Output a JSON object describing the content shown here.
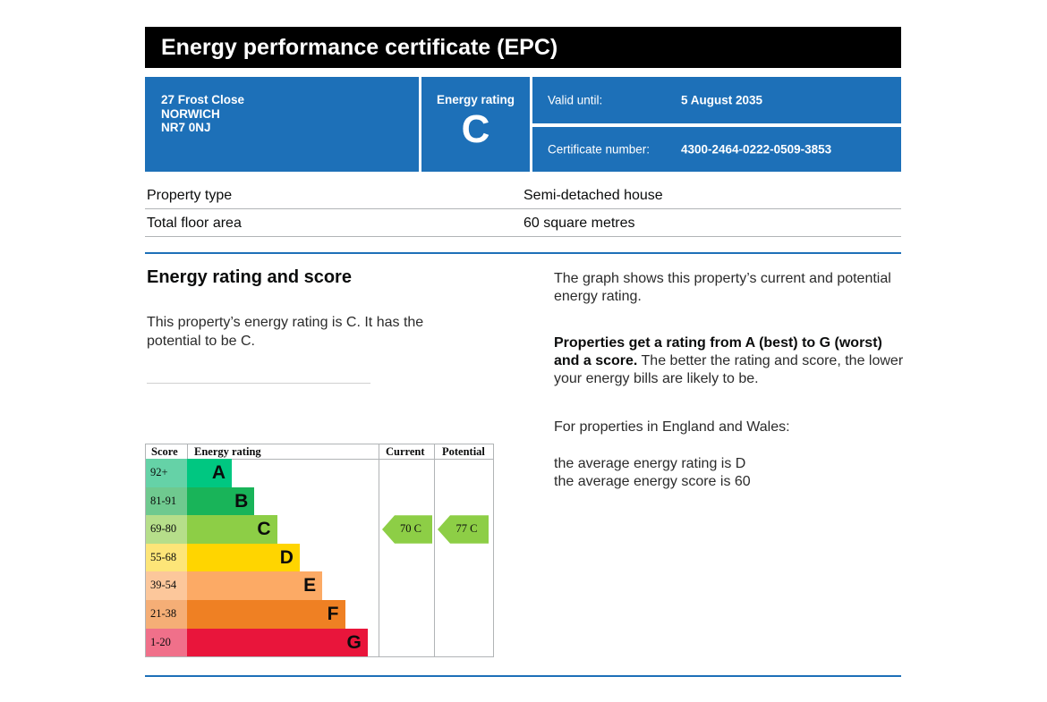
{
  "title": "Energy performance certificate (EPC)",
  "address": {
    "line1": "27 Frost Close",
    "line2": "NORWICH",
    "line3": "NR7 0NJ"
  },
  "energy_rating_box": {
    "label": "Energy rating",
    "value": "C"
  },
  "valid_until": {
    "label": "Valid until:",
    "value": "5 August 2035"
  },
  "certificate_number": {
    "label": "Certificate number:",
    "value": "4300-2464-0222-0509-3853"
  },
  "property": {
    "type_label": "Property type",
    "type_value": "Semi-detached house",
    "area_label": "Total floor area",
    "area_value": "60 square metres"
  },
  "section": {
    "heading": "Energy rating and score",
    "summary": "This property’s energy rating is C. It has the potential to be C."
  },
  "right": {
    "p1": "The graph shows this property’s current and potential energy rating.",
    "p2_bold": "Properties get a rating from A (best) to G (worst) and a score.",
    "p2_rest": " The better the rating and score, the lower your energy bills are likely to be.",
    "p3": "For properties in England and Wales:",
    "p4a": "the average energy rating is D",
    "p4b": "the average energy score is 60"
  },
  "graph": {
    "header_score": "Score",
    "header_rating": "Energy rating",
    "header_current": "Current",
    "header_potential": "Potential",
    "current_label": "70  C",
    "potential_label": "77  C",
    "current_score": 70,
    "potential_score": 77,
    "current_band": "C",
    "potential_band": "C",
    "current_color": "#8dce46",
    "potential_color": "#8dce46"
  },
  "chart_data": {
    "type": "bar",
    "categories": [
      "A",
      "B",
      "C",
      "D",
      "E",
      "F",
      "G"
    ],
    "score_ranges": [
      "92+",
      "81-91",
      "69-80",
      "55-68",
      "39-54",
      "21-38",
      "1-20"
    ],
    "colors": [
      "#00c781",
      "#19b459",
      "#8dce46",
      "#ffd500",
      "#fcaa65",
      "#ef8023",
      "#e9153b"
    ],
    "score_colors": [
      "#65d2a7",
      "#6fc98f",
      "#b6de8a",
      "#fde578",
      "#fcc79b",
      "#f5ae76",
      "#f0708a"
    ],
    "current": 70,
    "potential": 77
  }
}
